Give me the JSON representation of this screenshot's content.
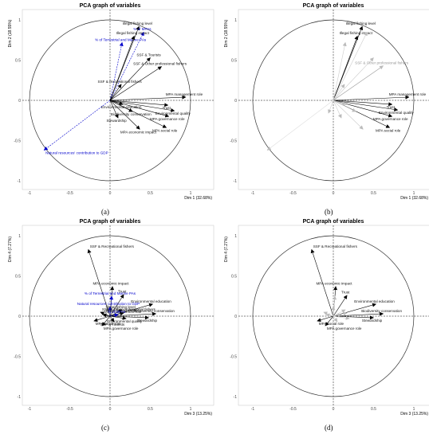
{
  "figure": {
    "captions": [
      "(a)",
      "(b)",
      "(c)",
      "(d)"
    ]
  },
  "chart_data": [
    {
      "type": "scatter",
      "title": "PCA graph of variables",
      "xlabel": "Dim 1 (32.68%)",
      "ylabel": "Dim 2 (18.55%)",
      "xlim": [
        -1,
        1
      ],
      "ylim": [
        -1,
        1
      ],
      "xticks": [
        "-1",
        "-0.5",
        "0",
        "0.5",
        "1"
      ],
      "yticks": [
        "-1",
        "-0.5",
        "0",
        "0.5",
        "1"
      ],
      "grid": false,
      "series": [
        {
          "label": "Illegal fishing level",
          "x": 0.36,
          "y": 0.92,
          "color": "#000000",
          "style": "solid"
        },
        {
          "label": "% of MPAs",
          "x": 0.42,
          "y": 0.85,
          "color": "#0000cc",
          "style": "dashed"
        },
        {
          "label": "% of Terrestrial and Marine PAs",
          "x": 0.15,
          "y": 0.72,
          "color": "#0000cc",
          "style": "dashed"
        },
        {
          "label": "Illegal fishing impact",
          "x": 0.3,
          "y": 0.8,
          "color": "#000000",
          "style": "solid"
        },
        {
          "label": "SSF & Tourists",
          "x": 0.5,
          "y": 0.53,
          "color": "#000000",
          "style": "solid"
        },
        {
          "label": "SSF & Other professional fishers",
          "x": 0.64,
          "y": 0.42,
          "color": "#000000",
          "style": "solid"
        },
        {
          "label": "SSF & Recreational fishers",
          "x": 0.14,
          "y": 0.2,
          "color": "#000000",
          "style": "solid"
        },
        {
          "label": "MPA management role",
          "x": 0.94,
          "y": 0.04,
          "color": "#000000",
          "style": "solid"
        },
        {
          "label": "Trust",
          "x": 0.72,
          "y": -0.06,
          "color": "#000000",
          "style": "solid"
        },
        {
          "label": "Environmental education",
          "x": 0.16,
          "y": -0.05,
          "color": "#000000",
          "style": "solid"
        },
        {
          "label": "Environmental quality",
          "x": 0.8,
          "y": -0.13,
          "color": "#000000",
          "style": "solid"
        },
        {
          "label": "Biodiversity conservation",
          "x": 0.28,
          "y": -0.14,
          "color": "#000000",
          "style": "solid"
        },
        {
          "label": "MPA governance role",
          "x": 0.73,
          "y": -0.2,
          "color": "#000000",
          "style": "solid"
        },
        {
          "label": "Stewardship",
          "x": 0.1,
          "y": -0.22,
          "color": "#000000",
          "style": "solid"
        },
        {
          "label": "MPA social role",
          "x": 0.7,
          "y": -0.34,
          "color": "#000000",
          "style": "solid"
        },
        {
          "label": "MPA economic impact",
          "x": 0.37,
          "y": -0.36,
          "color": "#000000",
          "style": "solid"
        },
        {
          "label": "Natural resources' contribution to GDP",
          "x": -0.82,
          "y": -0.62,
          "color": "#0000cc",
          "style": "dashed"
        }
      ]
    },
    {
      "type": "scatter",
      "title": "PCA graph of variables",
      "xlabel": "Dim 1 (32.68%)",
      "ylabel": "Dim 2 (18.55%)",
      "xlim": [
        -1,
        1
      ],
      "ylim": [
        -1,
        1
      ],
      "xticks": [
        "-1",
        "-0.5",
        "0",
        "0.5",
        "1"
      ],
      "yticks": [
        "-1",
        "-0.5",
        "0",
        "0.5",
        "1"
      ],
      "grid": false,
      "series": [
        {
          "label": "Illegal fishing level",
          "x": 0.36,
          "y": 0.92,
          "color": "#000000",
          "style": "solid"
        },
        {
          "label": "Illegal fishing impact",
          "x": 0.3,
          "y": 0.8,
          "color": "#000000",
          "style": "solid"
        },
        {
          "label": "SSF & Other professional fishers",
          "x": 0.62,
          "y": 0.43,
          "color": "#999999",
          "style": "solid"
        },
        {
          "label": "MPA management role",
          "x": 0.94,
          "y": 0.04,
          "color": "#000000",
          "style": "solid"
        },
        {
          "label": "Trust",
          "x": 0.73,
          "y": -0.05,
          "color": "#000000",
          "style": "solid"
        },
        {
          "label": "Environmental quality",
          "x": 0.8,
          "y": -0.12,
          "color": "#000000",
          "style": "solid"
        },
        {
          "label": "MPA governance role",
          "x": 0.73,
          "y": -0.2,
          "color": "#000000",
          "style": "solid"
        },
        {
          "label": "MPA social role",
          "x": 0.7,
          "y": -0.34,
          "color": "#000000",
          "style": "solid"
        },
        {
          "label": "",
          "x": 0.42,
          "y": 0.85,
          "color": "#cccccc",
          "style": "solid"
        },
        {
          "label": "",
          "x": 0.15,
          "y": 0.72,
          "color": "#cccccc",
          "style": "solid"
        },
        {
          "label": "",
          "x": 0.14,
          "y": 0.2,
          "color": "#cccccc",
          "style": "solid"
        },
        {
          "label": "",
          "x": 0.5,
          "y": 0.53,
          "color": "#cccccc",
          "style": "solid"
        },
        {
          "label": "",
          "x": 0.16,
          "y": -0.05,
          "color": "#cccccc",
          "style": "solid"
        },
        {
          "label": "",
          "x": 0.28,
          "y": -0.14,
          "color": "#cccccc",
          "style": "solid"
        },
        {
          "label": "",
          "x": 0.1,
          "y": -0.22,
          "color": "#cccccc",
          "style": "solid"
        },
        {
          "label": "",
          "x": 0.37,
          "y": -0.36,
          "color": "#cccccc",
          "style": "solid"
        },
        {
          "label": "",
          "x": -0.06,
          "y": -0.16,
          "color": "#cccccc",
          "style": "solid"
        },
        {
          "label": "",
          "x": -0.82,
          "y": -0.62,
          "color": "#dddddd",
          "style": "solid"
        }
      ]
    },
    {
      "type": "scatter",
      "title": "PCA graph of variables",
      "xlabel": "Dim 3 (13.25%)",
      "ylabel": "Dim 4 (7.27%)",
      "xlim": [
        -1,
        1
      ],
      "ylim": [
        -1,
        1
      ],
      "xticks": [
        "-1",
        "-0.5",
        "0",
        "0.5",
        "1"
      ],
      "yticks": [
        "-1",
        "-0.5",
        "0",
        "0.5",
        "1"
      ],
      "grid": false,
      "series": [
        {
          "label": "SSF & Recreational fishers",
          "x": -0.27,
          "y": 0.83,
          "color": "#000000",
          "style": "solid"
        },
        {
          "label": "MPA economic impact",
          "x": 0.03,
          "y": 0.37,
          "color": "#000000",
          "style": "solid"
        },
        {
          "label": "% of Terrestrial and Marine PAs",
          "x": 0.02,
          "y": 0.25,
          "color": "#0000cc",
          "style": "dashed"
        },
        {
          "label": "Trust",
          "x": 0.17,
          "y": 0.27,
          "color": "#000000",
          "style": "solid"
        },
        {
          "label": "Environmental education",
          "x": 0.53,
          "y": 0.15,
          "color": "#000000",
          "style": "solid"
        },
        {
          "label": "Natural resources' contribution to GDP",
          "x": 0.0,
          "y": 0.12,
          "color": "#0000cc",
          "style": "dashed"
        },
        {
          "label": "Illegal fishing level",
          "x": 0.15,
          "y": 0.08,
          "color": "#000000",
          "style": "solid"
        },
        {
          "label": "Biodiversity conservation",
          "x": 0.57,
          "y": 0.03,
          "color": "#000000",
          "style": "solid"
        },
        {
          "label": "Illegal fishing impact",
          "x": 0.17,
          "y": 0.04,
          "color": "#000000",
          "style": "solid"
        },
        {
          "label": "SSF & Other professional fishers",
          "x": -0.12,
          "y": 0.05,
          "color": "#000000",
          "style": "solid"
        },
        {
          "label": "MPA management role",
          "x": -0.09,
          "y": 0.02,
          "color": "#000000",
          "style": "solid"
        },
        {
          "label": "Stewardship",
          "x": 0.48,
          "y": -0.02,
          "color": "#000000",
          "style": "solid"
        },
        {
          "label": "MPA social role",
          "x": -0.2,
          "y": -0.06,
          "color": "#000000",
          "style": "solid"
        },
        {
          "label": "SSF & Tourists",
          "x": 0.05,
          "y": -0.07,
          "color": "#000000",
          "style": "solid"
        },
        {
          "label": "MPA governance role",
          "x": -0.1,
          "y": -0.12,
          "color": "#000000",
          "style": "solid"
        },
        {
          "label": "% of MPAs",
          "x": 0.1,
          "y": 0.02,
          "color": "#0000cc",
          "style": "dashed"
        },
        {
          "label": "Environmental quality",
          "x": 0.2,
          "y": -0.03,
          "color": "#000000",
          "style": "solid"
        }
      ]
    },
    {
      "type": "scatter",
      "title": "PCA graph of variables",
      "xlabel": "Dim 3 (13.25%)",
      "ylabel": "Dim 4 (7.27%)",
      "xlim": [
        -1,
        1
      ],
      "ylim": [
        -1,
        1
      ],
      "xticks": [
        "-1",
        "-0.5",
        "0",
        "0.5",
        "1"
      ],
      "yticks": [
        "-1",
        "-0.5",
        "0",
        "0.5",
        "1"
      ],
      "grid": false,
      "series": [
        {
          "label": "SSF & Recreational fishers",
          "x": -0.27,
          "y": 0.83,
          "color": "#000000",
          "style": "solid"
        },
        {
          "label": "MPA economic impact",
          "x": 0.03,
          "y": 0.37,
          "color": "#000000",
          "style": "solid"
        },
        {
          "label": "Trust",
          "x": 0.17,
          "y": 0.26,
          "color": "#000000",
          "style": "solid"
        },
        {
          "label": "Environmental education",
          "x": 0.53,
          "y": 0.15,
          "color": "#000000",
          "style": "solid"
        },
        {
          "label": "Biodiversity conservation",
          "x": 0.62,
          "y": 0.03,
          "color": "#000000",
          "style": "solid"
        },
        {
          "label": "Stewardship",
          "x": 0.5,
          "y": -0.02,
          "color": "#000000",
          "style": "solid"
        },
        {
          "label": "MPA social role",
          "x": -0.2,
          "y": -0.06,
          "color": "#000000",
          "style": "solid"
        },
        {
          "label": "MPA governance role",
          "x": -0.1,
          "y": -0.12,
          "color": "#000000",
          "style": "solid"
        },
        {
          "label": "",
          "x": 0.15,
          "y": 0.08,
          "color": "#cccccc",
          "style": "solid"
        },
        {
          "label": "",
          "x": 0.17,
          "y": 0.04,
          "color": "#cccccc",
          "style": "solid"
        },
        {
          "label": "",
          "x": -0.12,
          "y": 0.05,
          "color": "#cccccc",
          "style": "solid"
        },
        {
          "label": "",
          "x": -0.09,
          "y": 0.02,
          "color": "#cccccc",
          "style": "solid"
        },
        {
          "label": "",
          "x": 0.05,
          "y": -0.07,
          "color": "#cccccc",
          "style": "solid"
        },
        {
          "label": "",
          "x": 0.2,
          "y": -0.03,
          "color": "#cccccc",
          "style": "solid"
        },
        {
          "label": "",
          "x": 0.02,
          "y": 0.25,
          "color": "#dddddd",
          "style": "solid"
        },
        {
          "label": "",
          "x": 0.1,
          "y": 0.02,
          "color": "#dddddd",
          "style": "solid"
        },
        {
          "label": "",
          "x": 0.0,
          "y": 0.12,
          "color": "#dddddd",
          "style": "solid"
        }
      ]
    }
  ]
}
